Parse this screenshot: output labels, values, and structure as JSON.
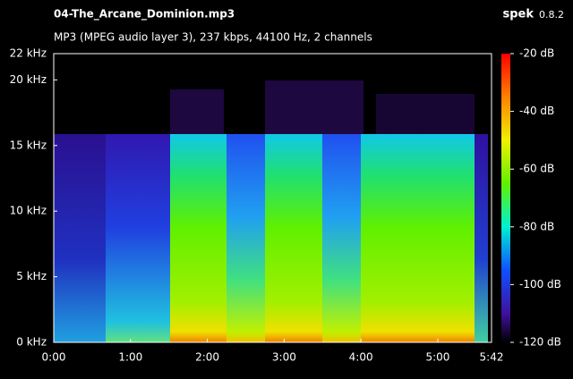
{
  "chart_data": {
    "type": "spectrogram",
    "title": "04-The_Arcane_Dominion.mp3",
    "subtitle": "MP3 (MPEG audio layer 3), 237 kbps, 44100 Hz, 2 channels",
    "app": "spek",
    "version": "0.8.2",
    "xlim": [
      0,
      342
    ],
    "xticks": [
      {
        "value": 0,
        "label": "0:00"
      },
      {
        "value": 60,
        "label": "1:00"
      },
      {
        "value": 120,
        "label": "2:00"
      },
      {
        "value": 180,
        "label": "3:00"
      },
      {
        "value": 240,
        "label": "4:00"
      },
      {
        "value": 300,
        "label": "5:00"
      },
      {
        "value": 342,
        "label": "5:42"
      }
    ],
    "ylim": [
      0,
      22
    ],
    "yticks": [
      {
        "value": 0,
        "label": "0 kHz"
      },
      {
        "value": 5,
        "label": "5 kHz"
      },
      {
        "value": 10,
        "label": "10 kHz"
      },
      {
        "value": 15,
        "label": "15 kHz"
      },
      {
        "value": 20,
        "label": "20 kHz"
      },
      {
        "value": 22,
        "label": "22 kHz"
      }
    ],
    "colorbar": {
      "lim": [
        -120,
        -20
      ],
      "ticks": [
        {
          "value": -20,
          "label": "-20 dB"
        },
        {
          "value": -40,
          "label": "-40 dB"
        },
        {
          "value": -60,
          "label": "-60 dB"
        },
        {
          "value": -80,
          "label": "-80 dB"
        },
        {
          "value": -100,
          "label": "-100 dB"
        },
        {
          "value": -120,
          "label": "-120 dB"
        }
      ]
    }
  }
}
